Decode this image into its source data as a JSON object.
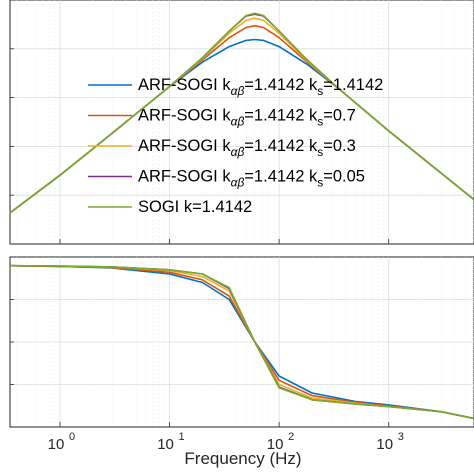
{
  "chart_data": [
    {
      "type": "line",
      "panel": "magnitude",
      "title": "",
      "xlabel": "",
      "ylabel": "",
      "x_scale": "log",
      "xlim": [
        0.35,
        6000
      ],
      "ylim": [
        -52,
        3
      ],
      "grid": true,
      "legend": {
        "placement": "center",
        "entries": [
          {
            "name": "ARF-SOGI k",
            "sub": "αβ",
            "value": "=1.4142 k",
            "sub2": "s",
            "tail": "=1.4142",
            "color": "#0072BD"
          },
          {
            "name": "ARF-SOGI k",
            "sub": "αβ",
            "value": "=1.4142 k",
            "sub2": "s",
            "tail": "=0.7",
            "color": "#D95319"
          },
          {
            "name": "ARF-SOGI k",
            "sub": "αβ",
            "value": "=1.4142 k",
            "sub2": "s",
            "tail": "=0.3",
            "color": "#EDB120"
          },
          {
            "name": "ARF-SOGI k",
            "sub": "αβ",
            "value": "=1.4142 k",
            "sub2": "s",
            "tail": "=0.05",
            "color": "#7E2F8E"
          },
          {
            "name": "SOGI k=1.4142",
            "sub": "",
            "value": "",
            "sub2": "",
            "tail": "",
            "color": "#77AC30"
          }
        ]
      },
      "x_ticks": [
        "0",
        "1",
        "2",
        "3"
      ],
      "x_tick_base": "10",
      "series": [
        {
          "name": "ARF-SOGI kαβ=1.4142 ks=1.4142",
          "color": "#0072BD",
          "x": [
            0.35,
            1,
            3,
            10,
            20,
            35,
            50,
            60,
            72,
            100,
            180,
            350,
            1000,
            3000,
            6000
          ],
          "y": [
            -45,
            -36.5,
            -27,
            -16.5,
            -11,
            -7.5,
            -6.1,
            -5.9,
            -6.1,
            -7.5,
            -11.5,
            -17,
            -26.5,
            -36,
            -42
          ]
        },
        {
          "name": "ARF-SOGI kαβ=1.4142 ks=0.7",
          "color": "#D95319",
          "x": [
            0.35,
            1,
            3,
            10,
            20,
            35,
            50,
            60,
            72,
            100,
            180,
            350,
            1000,
            3000,
            6000
          ],
          "y": [
            -45,
            -36.5,
            -27,
            -16.5,
            -10.5,
            -5.5,
            -3.2,
            -2.8,
            -3.2,
            -5.5,
            -11,
            -17,
            -26.5,
            -36,
            -42
          ]
        },
        {
          "name": "ARF-SOGI kαβ=1.4142 ks=0.3",
          "color": "#EDB120",
          "x": [
            0.35,
            1,
            3,
            10,
            20,
            35,
            50,
            60,
            72,
            100,
            180,
            350,
            1000,
            3000,
            6000
          ],
          "y": [
            -45,
            -36.5,
            -27,
            -16.5,
            -10.2,
            -4.5,
            -1.6,
            -1.1,
            -1.6,
            -4.5,
            -10.8,
            -17,
            -26.5,
            -36,
            -42
          ]
        },
        {
          "name": "ARF-SOGI kαβ=1.4142 ks=0.05",
          "color": "#7E2F8E",
          "x": [
            0.35,
            1,
            3,
            10,
            20,
            35,
            50,
            60,
            72,
            100,
            180,
            350,
            1000,
            3000,
            6000
          ],
          "y": [
            -45,
            -36.5,
            -27,
            -16.5,
            -10,
            -4,
            -0.6,
            -0.2,
            -0.6,
            -4,
            -10.5,
            -17,
            -26.5,
            -36,
            -42
          ]
        },
        {
          "name": "SOGI k=1.4142",
          "color": "#77AC30",
          "x": [
            0.35,
            1,
            3,
            10,
            20,
            35,
            50,
            60,
            72,
            100,
            180,
            350,
            1000,
            3000,
            6000
          ],
          "y": [
            -45,
            -36.5,
            -27,
            -16.5,
            -10,
            -4,
            -0.5,
            0,
            -0.5,
            -4,
            -10.5,
            -17,
            -26.5,
            -36,
            -42
          ]
        }
      ]
    },
    {
      "type": "line",
      "panel": "phase",
      "title": "",
      "xlabel": "Frequency  (Hz)",
      "ylabel": "",
      "x_scale": "log",
      "xlim": [
        0.35,
        6000
      ],
      "ylim": [
        -100,
        100
      ],
      "grid": true,
      "x_ticks": [
        "0",
        "1",
        "2",
        "3"
      ],
      "x_tick_base": "10",
      "series": [
        {
          "name": "ARF-SOGI kαβ=1.4142 ks=1.4142",
          "color": "#0072BD",
          "x": [
            0.35,
            1,
            3,
            10,
            20,
            35,
            60,
            100,
            200,
            500,
            1000,
            3000,
            6000
          ],
          "y": [
            89.8,
            89,
            87,
            80,
            70,
            50,
            0,
            -40,
            -60,
            -70,
            -74,
            -82,
            -90
          ]
        },
        {
          "name": "ARF-SOGI kαβ=1.4142 ks=0.7",
          "color": "#D95319",
          "x": [
            0.35,
            1,
            3,
            10,
            20,
            35,
            60,
            100,
            200,
            500,
            1000,
            3000,
            6000
          ],
          "y": [
            89.8,
            89,
            87.5,
            82,
            73,
            54,
            0,
            -45,
            -63,
            -71,
            -75,
            -82,
            -90
          ]
        },
        {
          "name": "ARF-SOGI kαβ=1.4142 ks=0.3",
          "color": "#EDB120",
          "x": [
            0.35,
            1,
            3,
            10,
            20,
            35,
            60,
            100,
            200,
            500,
            1000,
            3000,
            6000
          ],
          "y": [
            89.8,
            89.2,
            88,
            84,
            77,
            60,
            0,
            -50,
            -66,
            -72,
            -76,
            -82,
            -90
          ]
        },
        {
          "name": "ARF-SOGI kαβ=1.4142 ks=0.05",
          "color": "#7E2F8E",
          "x": [
            0.35,
            1,
            3,
            10,
            20,
            35,
            60,
            100,
            200,
            500,
            1000,
            3000,
            6000
          ],
          "y": [
            89.8,
            89.3,
            88.3,
            85,
            80,
            63,
            0,
            -53,
            -68,
            -73,
            -76,
            -82,
            -90
          ]
        },
        {
          "name": "SOGI k=1.4142",
          "color": "#77AC30",
          "x": [
            0.35,
            1,
            3,
            10,
            20,
            35,
            60,
            100,
            200,
            500,
            1000,
            3000,
            6000
          ],
          "y": [
            89.8,
            89.3,
            88.3,
            85,
            80,
            64,
            0,
            -54,
            -68,
            -73,
            -76,
            -82,
            -90
          ]
        }
      ]
    }
  ]
}
